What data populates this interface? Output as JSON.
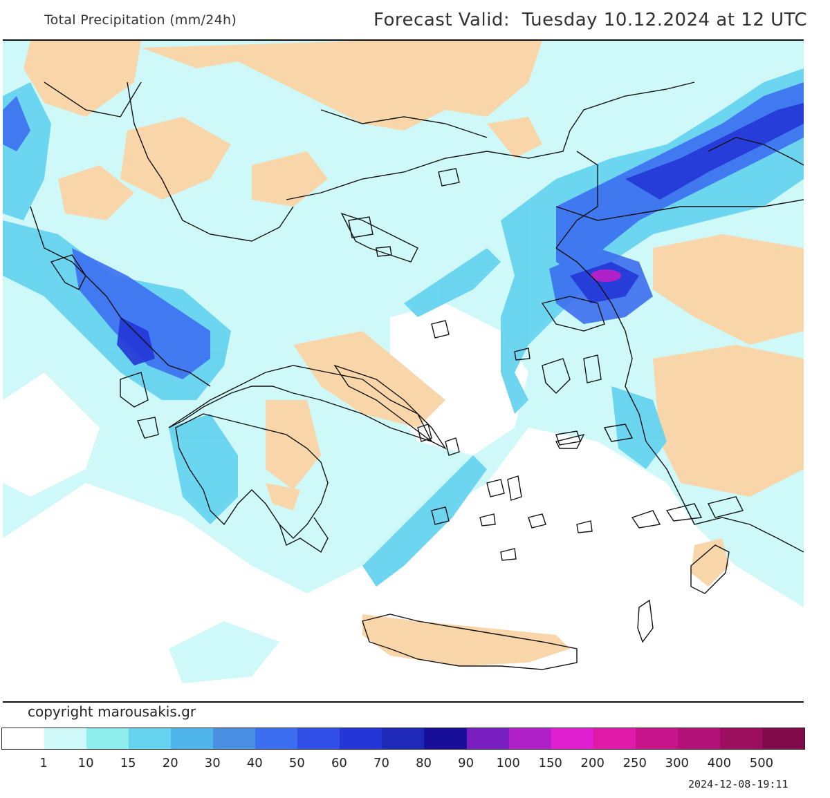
{
  "header": {
    "title": "Total Precipitation (mm/24h)",
    "forecast_label": "Forecast Valid:",
    "forecast_value": "Tuesday 10.12.2024 at 12 UTC"
  },
  "copyright": "copyright marousakis.gr",
  "timestamp": "2024-12-08-19:11",
  "legend": {
    "colors": [
      "#ffffff",
      "#cff9f9",
      "#8deded",
      "#66d3ef",
      "#4fb5ea",
      "#4a90e2",
      "#3c6ff0",
      "#2f4fe6",
      "#2436d6",
      "#1e29b8",
      "#170f99",
      "#7a1fbf",
      "#b021c9",
      "#e01fd0",
      "#e01aa8",
      "#c8148a",
      "#b31278",
      "#9c0f5e",
      "#800a4a"
    ],
    "labels": [
      "1",
      "10",
      "15",
      "20",
      "30",
      "40",
      "50",
      "60",
      "70",
      "80",
      "90",
      "100",
      "150",
      "200",
      "250",
      "300",
      "400",
      "500"
    ]
  },
  "map": {
    "land_dry_color": "#f8d6a9",
    "rain_light_color": "#cff9f9",
    "rain_mid_color": "#66d3ef",
    "rain_heavy_color": "#3c6ff0",
    "rain_peak_color": "#b021c9",
    "border_color": "#111111"
  }
}
